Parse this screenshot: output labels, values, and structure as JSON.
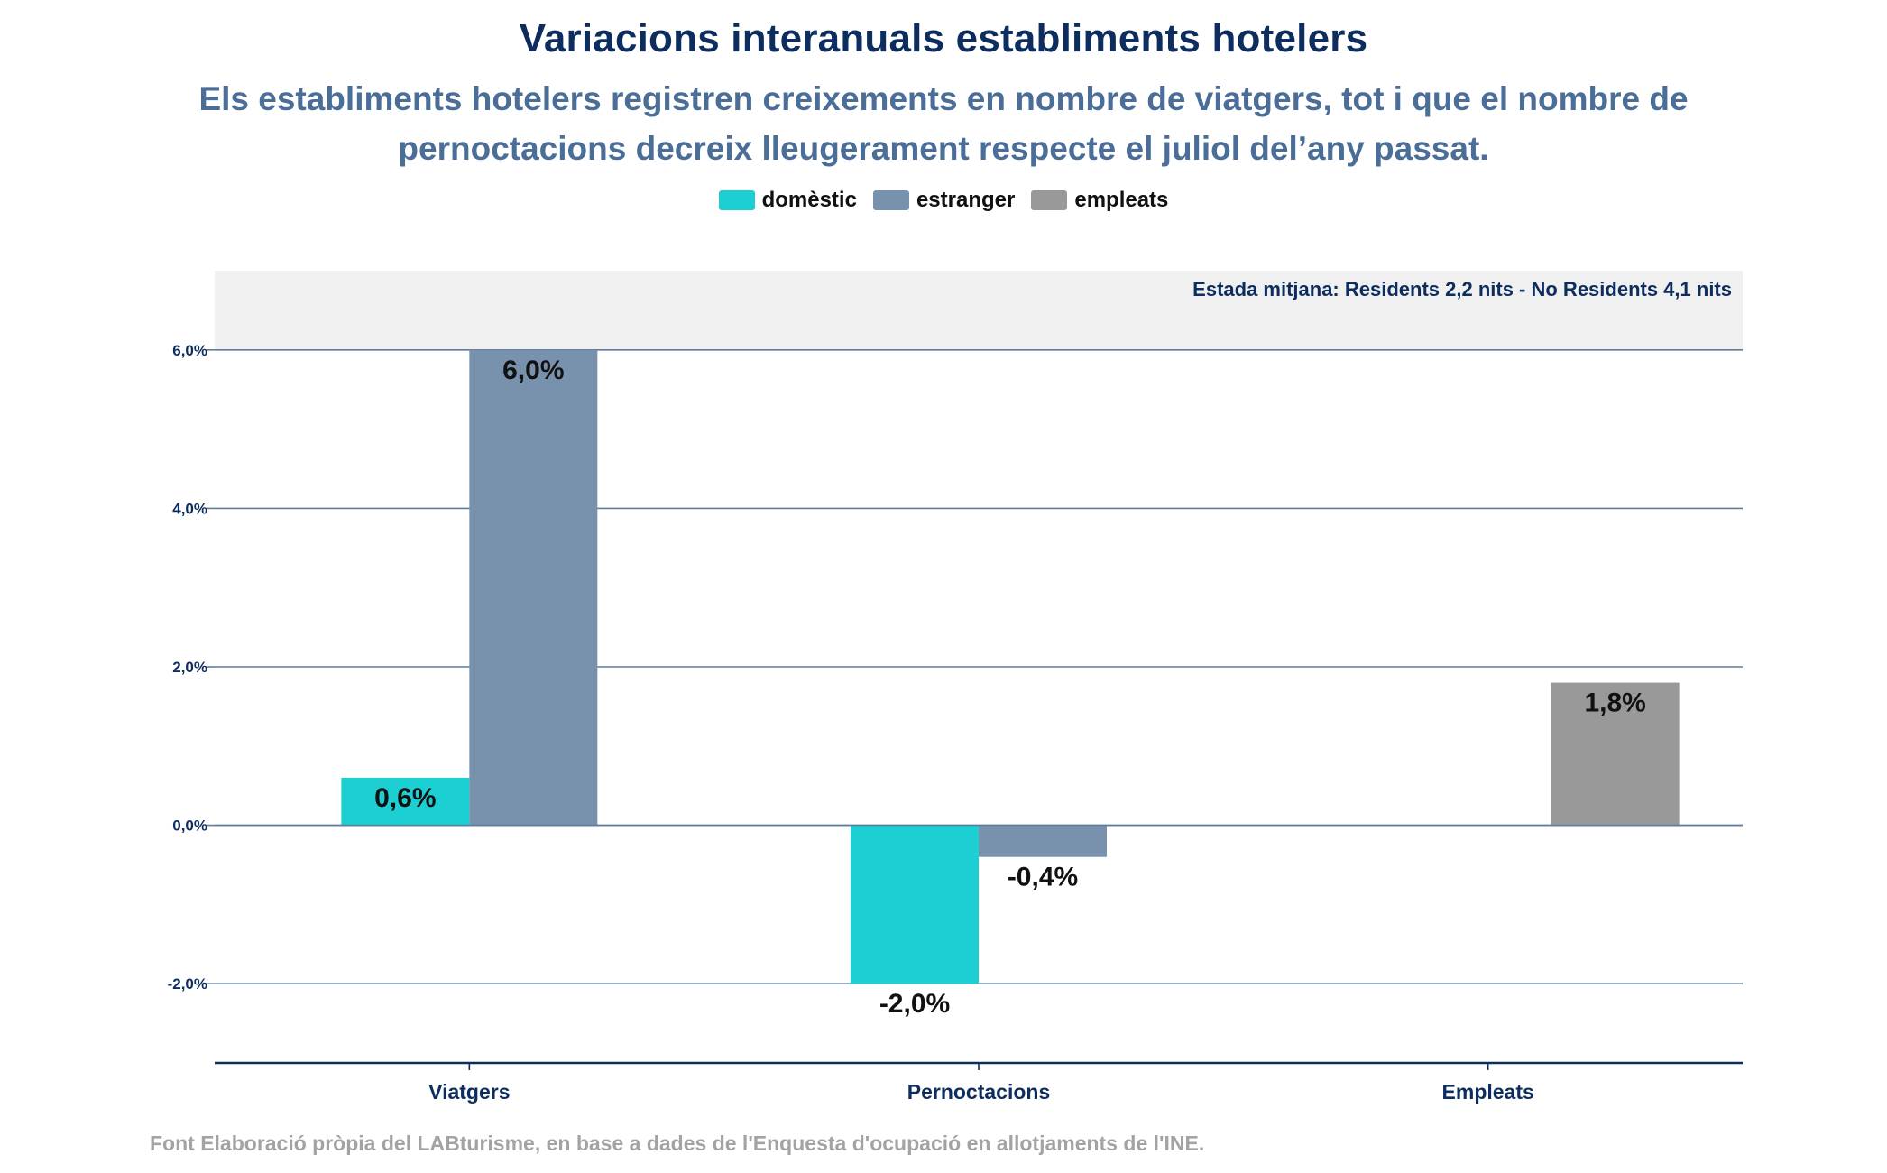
{
  "chart_data": {
    "type": "bar",
    "title": "Variacions interanuals establiments hotelers",
    "subtitle": "Els establiments hotelers registren creixements en nombre de viatgers, tot i que el nombre de pernoctacions decreix lleugerament respecte el juliol del’any passat.",
    "categories": [
      "Viatgers",
      "Pernoctacions",
      "Empleats"
    ],
    "series": [
      {
        "name": "domèstic",
        "color": "#1ccfd3",
        "values": [
          0.6,
          -2.0,
          null
        ],
        "labels": [
          "0,6%",
          "-2,0%",
          ""
        ]
      },
      {
        "name": "estranger",
        "color": "#7891ad",
        "values": [
          6.0,
          -0.4,
          null
        ],
        "labels": [
          "6,0%",
          "-0,4%",
          ""
        ]
      },
      {
        "name": "empleats",
        "color": "#999999",
        "values": [
          null,
          null,
          1.8
        ],
        "labels": [
          "",
          "",
          "1,8%"
        ]
      }
    ],
    "y_ticks": [
      {
        "value": 6,
        "label": "6,0%"
      },
      {
        "value": 4,
        "label": "4,0%"
      },
      {
        "value": 2,
        "label": "2,0%"
      },
      {
        "value": 0,
        "label": "0,0%"
      },
      {
        "value": -2,
        "label": "-2,0%"
      }
    ],
    "ylim": [
      -3,
      7
    ],
    "grid": true,
    "legend_position": "top-center",
    "annotation": {
      "text": "Estada mitjana: Residents 2,2 nits - No Residents 4,1 nits",
      "band_from": 6,
      "band_to": 7,
      "color": "#f0f0f0"
    },
    "colors": {
      "axis": "#0d2d5e",
      "grid": "#5f7d9c",
      "tick_text": "#0d2d5e",
      "data_label": "#111111"
    },
    "source": "Font Elaboració pròpia del LABturisme, en base a dades de l'Enquesta d'ocupació en allotjaments de l'INE."
  }
}
